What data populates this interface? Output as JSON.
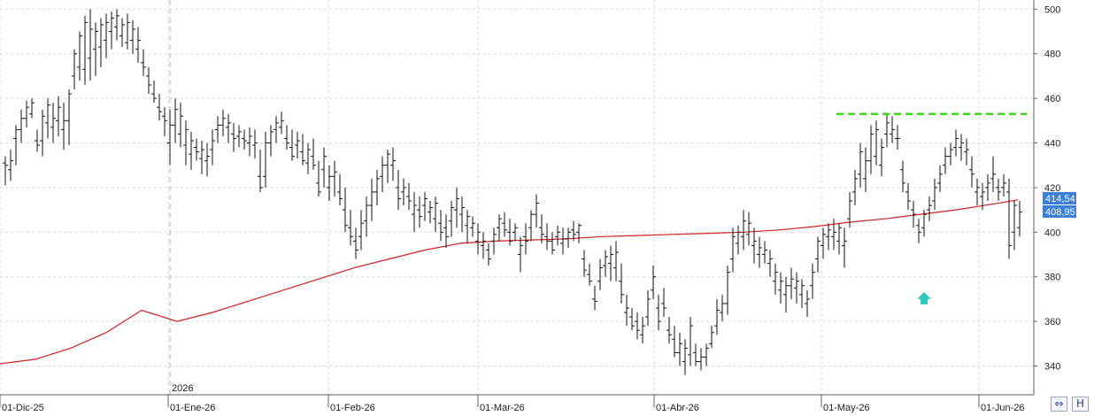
{
  "chart_data": {
    "type": "ohlc",
    "y_ticks": [
      "340",
      "360",
      "380",
      "400",
      "420",
      "440",
      "460",
      "480",
      "500"
    ],
    "x_ticks": [
      "01-Dic-25",
      "01-Ene-26",
      "01-Feb-26",
      "01-Mar-26",
      "01-Abr-26",
      "01-May-26",
      "01-Jun-26"
    ],
    "year_marker": "2026",
    "ylim": [
      333,
      502
    ],
    "grid": true,
    "moving_average": {
      "color": "#d0201f",
      "current_value_label": "414,54",
      "points": [
        [
          0,
          341
        ],
        [
          40,
          343
        ],
        [
          80,
          348
        ],
        [
          120,
          355
        ],
        [
          160,
          365
        ],
        [
          200,
          360
        ],
        [
          240,
          364
        ],
        [
          280,
          369
        ],
        [
          320,
          374
        ],
        [
          360,
          379
        ],
        [
          400,
          384
        ],
        [
          440,
          388
        ],
        [
          480,
          392
        ],
        [
          520,
          395
        ],
        [
          560,
          396
        ],
        [
          600,
          396.5
        ],
        [
          640,
          397
        ],
        [
          680,
          398
        ],
        [
          720,
          398.5
        ],
        [
          760,
          399
        ],
        [
          800,
          399.5
        ],
        [
          840,
          400
        ],
        [
          880,
          401
        ],
        [
          920,
          402.5
        ],
        [
          960,
          404.5
        ],
        [
          1000,
          406
        ],
        [
          1040,
          408
        ],
        [
          1080,
          410
        ],
        [
          1120,
          412.5
        ],
        [
          1150,
          414.5
        ]
      ]
    },
    "last_price_label": "408,95",
    "label_color": "#3d7fd0",
    "resistance_line": {
      "color": "#33dd11",
      "value": 453,
      "x_range": [
        945,
        1160
      ]
    },
    "arrow": {
      "color": "#2fc9c0",
      "value": 370
    },
    "bars": [
      [
        6,
        421,
        434,
        431,
        430
      ],
      [
        12,
        423,
        437,
        428,
        432
      ],
      [
        18,
        430,
        448,
        442,
        446
      ],
      [
        24,
        440,
        455,
        446,
        451
      ],
      [
        30,
        447,
        459,
        451,
        456
      ],
      [
        36,
        451,
        460,
        453,
        458
      ],
      [
        42,
        436,
        446,
        441,
        439
      ],
      [
        48,
        434,
        455,
        441,
        452
      ],
      [
        54,
        442,
        460,
        449,
        457
      ],
      [
        60,
        440,
        458,
        447,
        451
      ],
      [
        66,
        443,
        461,
        450,
        456
      ],
      [
        72,
        437,
        458,
        446,
        450
      ],
      [
        78,
        439,
        464,
        450,
        462
      ],
      [
        84,
        464,
        482,
        470,
        480
      ],
      [
        90,
        468,
        490,
        474,
        488
      ],
      [
        96,
        466,
        497,
        473,
        494
      ],
      [
        102,
        468,
        500,
        478,
        491
      ],
      [
        108,
        470,
        494,
        482,
        490
      ],
      [
        114,
        474,
        496,
        483,
        493
      ],
      [
        120,
        478,
        498,
        486,
        494
      ],
      [
        126,
        482,
        499,
        490,
        496
      ],
      [
        132,
        486,
        500,
        492,
        497
      ],
      [
        138,
        483,
        496,
        488,
        493
      ],
      [
        144,
        482,
        498,
        485,
        494
      ],
      [
        150,
        480,
        495,
        486,
        491
      ],
      [
        156,
        476,
        492,
        482,
        486
      ],
      [
        162,
        470,
        482,
        476,
        474
      ],
      [
        168,
        462,
        474,
        470,
        466
      ],
      [
        174,
        458,
        468,
        462,
        460
      ],
      [
        180,
        450,
        462,
        456,
        454
      ],
      [
        186,
        443,
        456,
        452,
        450
      ],
      [
        192,
        430,
        455,
        440,
        448
      ],
      [
        198,
        440,
        460,
        448,
        455
      ],
      [
        204,
        438,
        458,
        444,
        452
      ],
      [
        210,
        430,
        450,
        439,
        446
      ],
      [
        216,
        428,
        445,
        435,
        441
      ],
      [
        222,
        432,
        442,
        438,
        436
      ],
      [
        228,
        426,
        441,
        433,
        437
      ],
      [
        234,
        425,
        440,
        432,
        434
      ],
      [
        240,
        430,
        446,
        437,
        441
      ],
      [
        246,
        440,
        452,
        446,
        448
      ],
      [
        252,
        443,
        455,
        448,
        451
      ],
      [
        258,
        440,
        453,
        447,
        449
      ],
      [
        264,
        436,
        449,
        444,
        442
      ],
      [
        270,
        438,
        448,
        443,
        445
      ],
      [
        276,
        437,
        446,
        442,
        441
      ],
      [
        282,
        434,
        447,
        440,
        443
      ],
      [
        288,
        433,
        446,
        439,
        440
      ],
      [
        294,
        418,
        437,
        425,
        420
      ],
      [
        300,
        420,
        445,
        425,
        440
      ],
      [
        306,
        434,
        448,
        440,
        445
      ],
      [
        312,
        440,
        452,
        446,
        449
      ],
      [
        318,
        444,
        454,
        447,
        450
      ],
      [
        324,
        437,
        448,
        442,
        440
      ],
      [
        330,
        432,
        446,
        438,
        434
      ],
      [
        336,
        433,
        445,
        439,
        441
      ],
      [
        342,
        430,
        444,
        436,
        432
      ],
      [
        348,
        426,
        440,
        431,
        437
      ],
      [
        354,
        428,
        442,
        434,
        430
      ],
      [
        360,
        416,
        432,
        422,
        418
      ],
      [
        366,
        420,
        438,
        428,
        434
      ],
      [
        372,
        414,
        430,
        420,
        425
      ],
      [
        378,
        416,
        432,
        425,
        427
      ],
      [
        384,
        412,
        426,
        418,
        415
      ],
      [
        390,
        400,
        420,
        410,
        403
      ],
      [
        396,
        394,
        410,
        402,
        398
      ],
      [
        402,
        388,
        402,
        396,
        392
      ],
      [
        408,
        392,
        410,
        398,
        404
      ],
      [
        414,
        398,
        416,
        405,
        412
      ],
      [
        420,
        405,
        424,
        412,
        418
      ],
      [
        426,
        412,
        428,
        418,
        424
      ],
      [
        432,
        418,
        434,
        425,
        430
      ],
      [
        438,
        422,
        437,
        430,
        435
      ],
      [
        444,
        423,
        438,
        430,
        432
      ],
      [
        450,
        410,
        428,
        420,
        415
      ],
      [
        456,
        412,
        424,
        418,
        420
      ],
      [
        462,
        410,
        422,
        416,
        414
      ],
      [
        468,
        400,
        418,
        408,
        412
      ],
      [
        474,
        402,
        416,
        410,
        407
      ],
      [
        480,
        405,
        418,
        412,
        415
      ],
      [
        486,
        404,
        414,
        409,
        411
      ],
      [
        492,
        400,
        416,
        406,
        413
      ],
      [
        498,
        396,
        410,
        404,
        400
      ],
      [
        504,
        393,
        408,
        402,
        398
      ],
      [
        510,
        398,
        414,
        405,
        411
      ],
      [
        516,
        402,
        420,
        410,
        415
      ],
      [
        522,
        400,
        416,
        408,
        411
      ],
      [
        528,
        395,
        410,
        403,
        407
      ],
      [
        534,
        398,
        407,
        402,
        404
      ],
      [
        540,
        390,
        404,
        396,
        400
      ],
      [
        546,
        388,
        400,
        394,
        396
      ],
      [
        552,
        385,
        395,
        392,
        388
      ],
      [
        558,
        390,
        402,
        396,
        399
      ],
      [
        564,
        396,
        408,
        402,
        406
      ],
      [
        570,
        398,
        409,
        404,
        401
      ],
      [
        576,
        394,
        406,
        400,
        396
      ],
      [
        582,
        396,
        404,
        400,
        402
      ],
      [
        588,
        382,
        398,
        390,
        394
      ],
      [
        594,
        390,
        404,
        398,
        396
      ],
      [
        600,
        396,
        410,
        402,
        408
      ],
      [
        606,
        402,
        417,
        408,
        413
      ],
      [
        612,
        395,
        408,
        402,
        399
      ],
      [
        618,
        392,
        404,
        398,
        396
      ],
      [
        624,
        390,
        400,
        396,
        392
      ],
      [
        630,
        394,
        403,
        398,
        400
      ],
      [
        636,
        390,
        402,
        395,
        397
      ],
      [
        642,
        393,
        402,
        397,
        400
      ],
      [
        648,
        396,
        405,
        401,
        399
      ],
      [
        654,
        395,
        404,
        400,
        403
      ],
      [
        660,
        380,
        392,
        388,
        383
      ],
      [
        666,
        376,
        386,
        381,
        378
      ],
      [
        672,
        365,
        376,
        370,
        369
      ],
      [
        678,
        374,
        388,
        378,
        384
      ],
      [
        684,
        380,
        392,
        385,
        389
      ],
      [
        690,
        378,
        394,
        386,
        390
      ],
      [
        696,
        378,
        396,
        384,
        391
      ],
      [
        702,
        368,
        386,
        378,
        372
      ],
      [
        708,
        358,
        372,
        364,
        366
      ],
      [
        714,
        356,
        366,
        362,
        358
      ],
      [
        720,
        352,
        364,
        360,
        356
      ],
      [
        726,
        350,
        362,
        354,
        358
      ],
      [
        732,
        358,
        374,
        362,
        370
      ],
      [
        738,
        370,
        385,
        374,
        380
      ],
      [
        744,
        356,
        372,
        366,
        360
      ],
      [
        750,
        362,
        375,
        368,
        366
      ],
      [
        756,
        350,
        362,
        356,
        354
      ],
      [
        762,
        344,
        358,
        352,
        346
      ],
      [
        768,
        340,
        355,
        346,
        350
      ],
      [
        774,
        336,
        352,
        342,
        348
      ],
      [
        780,
        340,
        362,
        345,
        358
      ],
      [
        786,
        340,
        350,
        346,
        342
      ],
      [
        792,
        338,
        348,
        342,
        344
      ],
      [
        798,
        340,
        350,
        344,
        348
      ],
      [
        804,
        348,
        358,
        350,
        355
      ],
      [
        810,
        354,
        370,
        358,
        365
      ],
      [
        816,
        360,
        372,
        364,
        368
      ],
      [
        822,
        363,
        385,
        368,
        382
      ],
      [
        828,
        382,
        402,
        388,
        398
      ],
      [
        834,
        390,
        403,
        395,
        400
      ],
      [
        840,
        392,
        410,
        398,
        405
      ],
      [
        846,
        394,
        409,
        399,
        404
      ],
      [
        852,
        386,
        402,
        394,
        396
      ],
      [
        858,
        384,
        398,
        390,
        393
      ],
      [
        864,
        386,
        396,
        390,
        392
      ],
      [
        870,
        380,
        392,
        386,
        388
      ],
      [
        876,
        372,
        386,
        378,
        382
      ],
      [
        882,
        368,
        382,
        374,
        378
      ],
      [
        888,
        364,
        380,
        372,
        376
      ],
      [
        894,
        370,
        384,
        376,
        379
      ],
      [
        900,
        368,
        382,
        375,
        378
      ],
      [
        906,
        366,
        379,
        372,
        376
      ],
      [
        912,
        362,
        374,
        368,
        370
      ],
      [
        918,
        370,
        386,
        376,
        382
      ],
      [
        924,
        382,
        398,
        388,
        396
      ],
      [
        930,
        388,
        402,
        394,
        399
      ],
      [
        936,
        392,
        404,
        398,
        401
      ],
      [
        942,
        392,
        406,
        398,
        400
      ],
      [
        948,
        390,
        404,
        396,
        402
      ],
      [
        954,
        384,
        402,
        394,
        396
      ],
      [
        960,
        402,
        418,
        406,
        414
      ],
      [
        966,
        412,
        428,
        418,
        424
      ],
      [
        972,
        420,
        440,
        426,
        436
      ],
      [
        978,
        418,
        438,
        424,
        432
      ],
      [
        984,
        426,
        448,
        432,
        444
      ],
      [
        990,
        430,
        450,
        434,
        446
      ],
      [
        996,
        425,
        442,
        430,
        438
      ],
      [
        1002,
        438,
        453,
        444,
        449
      ],
      [
        1008,
        440,
        452,
        444,
        446
      ],
      [
        1014,
        437,
        448,
        442,
        442
      ],
      [
        1020,
        418,
        432,
        428,
        422
      ],
      [
        1026,
        410,
        422,
        418,
        414
      ],
      [
        1032,
        402,
        414,
        410,
        408
      ],
      [
        1038,
        395,
        406,
        403,
        400
      ],
      [
        1044,
        398,
        410,
        402,
        408
      ],
      [
        1050,
        405,
        416,
        410,
        412
      ],
      [
        1056,
        410,
        424,
        414,
        420
      ],
      [
        1062,
        418,
        430,
        422,
        426
      ],
      [
        1068,
        426,
        438,
        430,
        434
      ],
      [
        1074,
        430,
        440,
        434,
        437
      ],
      [
        1080,
        434,
        446,
        438,
        442
      ],
      [
        1086,
        432,
        444,
        438,
        440
      ],
      [
        1092,
        430,
        442,
        436,
        437
      ],
      [
        1098,
        420,
        434,
        428,
        426
      ],
      [
        1104,
        412,
        424,
        418,
        420
      ],
      [
        1110,
        410,
        422,
        416,
        418
      ],
      [
        1116,
        414,
        426,
        420,
        422
      ],
      [
        1122,
        418,
        434,
        424,
        426
      ],
      [
        1128,
        414,
        424,
        420,
        418
      ],
      [
        1134,
        416,
        426,
        420,
        422
      ],
      [
        1140,
        388,
        424,
        418,
        394
      ],
      [
        1146,
        392,
        414,
        400,
        412
      ],
      [
        1152,
        398,
        414,
        402,
        409
      ]
    ]
  },
  "corner_buttons": {
    "left_glyph": "⇔",
    "right_glyph": "H"
  }
}
